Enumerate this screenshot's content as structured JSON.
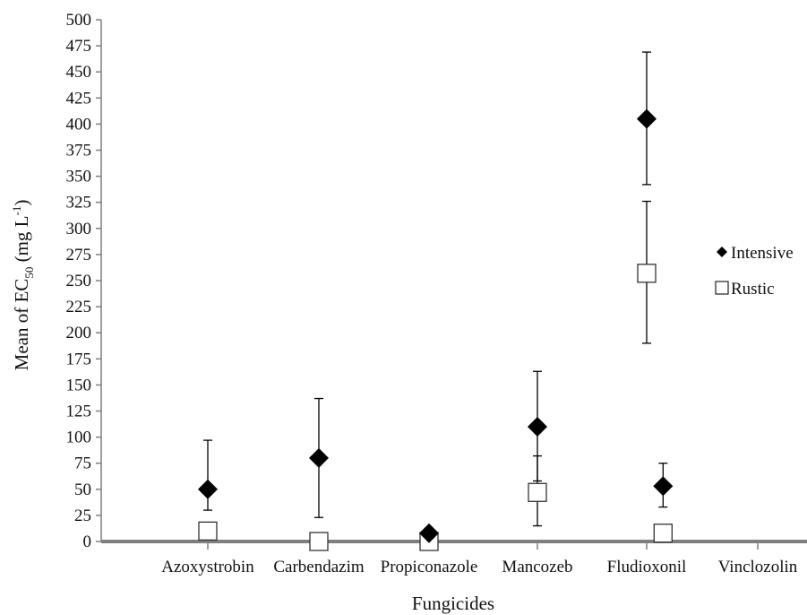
{
  "chart_data": {
    "type": "scatter",
    "xlabel": "Fungicides",
    "ylabel_prefix": "Mean of EC",
    "ylabel_subscript": "50",
    "ylabel_unit_open": " (mg L",
    "ylabel_superscript": "-1",
    "ylabel_unit_close": ")",
    "categories": [
      "Azoxystrobin",
      "Carbendazim",
      "Propiconazole",
      "Mancozeb",
      "Fludioxonil",
      "Vinclozolin"
    ],
    "ylim": [
      0,
      500
    ],
    "yticks": [
      0,
      25,
      50,
      75,
      100,
      125,
      150,
      175,
      200,
      225,
      250,
      275,
      300,
      325,
      350,
      375,
      400,
      425,
      450,
      475,
      500
    ],
    "grid": false,
    "legend_position": "right",
    "series": [
      {
        "name": "Intensive",
        "marker": "filled-diamond",
        "color": "#000000",
        "points": [
          {
            "category": "Azoxystrobin",
            "y": 50,
            "err_low": 30,
            "err_high": 97
          },
          {
            "category": "Carbendazim",
            "y": 80,
            "err_low": 23,
            "err_high": 137
          },
          {
            "category": "Propiconazole",
            "y": 8,
            "err_low": 5,
            "err_high": 12
          },
          {
            "category": "Mancozeb",
            "y": 110,
            "err_low": 58,
            "err_high": 163
          },
          {
            "category": "Fludioxonil",
            "y": 405,
            "err_low": 342,
            "err_high": 469
          },
          {
            "category": "Fludioxonil",
            "y": 53,
            "err_low": 33,
            "err_high": 75,
            "offset": 0.15
          }
        ]
      },
      {
        "name": "Rustic",
        "marker": "open-square",
        "color": "#ffffff",
        "points": [
          {
            "category": "Azoxystrobin",
            "y": 10
          },
          {
            "category": "Carbendazim",
            "y": 0
          },
          {
            "category": "Propiconazole",
            "y": 0
          },
          {
            "category": "Mancozeb",
            "y": 47,
            "err_low": 15,
            "err_high": 82
          },
          {
            "category": "Fludioxonil",
            "y": 257,
            "err_low": 190,
            "err_high": 326
          },
          {
            "category": "Fludioxonil",
            "y": 8,
            "offset": 0.15
          }
        ]
      }
    ]
  }
}
